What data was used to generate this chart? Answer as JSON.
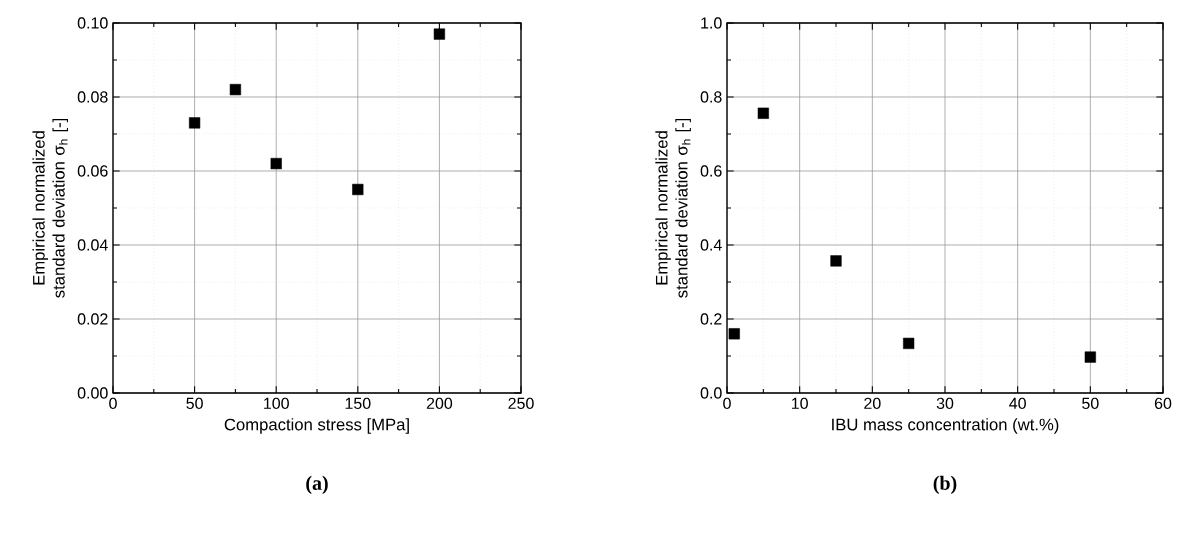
{
  "chart_data": [
    {
      "type": "scatter",
      "title": "**(a)**",
      "xlabel": "Compaction stress [MPa]",
      "ylabel": "Empirical normalized standard deviation σ$_{h}$ [-]",
      "x": [
        50,
        75,
        100,
        150,
        200
      ],
      "values": [
        0.073,
        0.082,
        0.062,
        0.055,
        0.097
      ],
      "color": "#000000",
      "marker": "square",
      "xlim": [
        0,
        250
      ],
      "xticks": [
        0,
        50,
        100,
        150,
        200,
        250
      ],
      "ylim": [
        0,
        0.1
      ],
      "yticks": [
        {
          "value": 0,
          "label": "0.00"
        },
        {
          "value": 0.02,
          "label": "0.02"
        },
        {
          "value": 0.04,
          "label": "0.04"
        },
        {
          "value": 0.06,
          "label": "0.06"
        },
        {
          "value": 0.08,
          "label": "0.08"
        },
        {
          "value": 0.1,
          "label": "0.10"
        }
      ],
      "grid": true
    },
    {
      "type": "scatter",
      "title": "**(b)**",
      "xlabel": "IBU mass concentration (wt.%)",
      "ylabel": "Empirical normalized standard deviation σ$_{h}$ [-]",
      "x": [
        1,
        5,
        15,
        25,
        50
      ],
      "values": [
        0.16,
        0.756,
        0.357,
        0.134,
        0.097
      ],
      "color": "#000000",
      "marker": "square",
      "xlim": [
        0,
        60
      ],
      "xticks": [
        0,
        10,
        20,
        30,
        40,
        50,
        60
      ],
      "ylim": [
        0,
        1
      ],
      "yticks": [
        {
          "value": 0,
          "label": "0.0"
        },
        {
          "value": 0.2,
          "label": "0.2"
        },
        {
          "value": 0.4,
          "label": "0.4"
        },
        {
          "value": 0.6,
          "label": "0.6"
        },
        {
          "value": 0.8,
          "label": "0.8"
        },
        {
          "value": 1,
          "label": "1.0"
        }
      ],
      "grid": true
    }
  ]
}
